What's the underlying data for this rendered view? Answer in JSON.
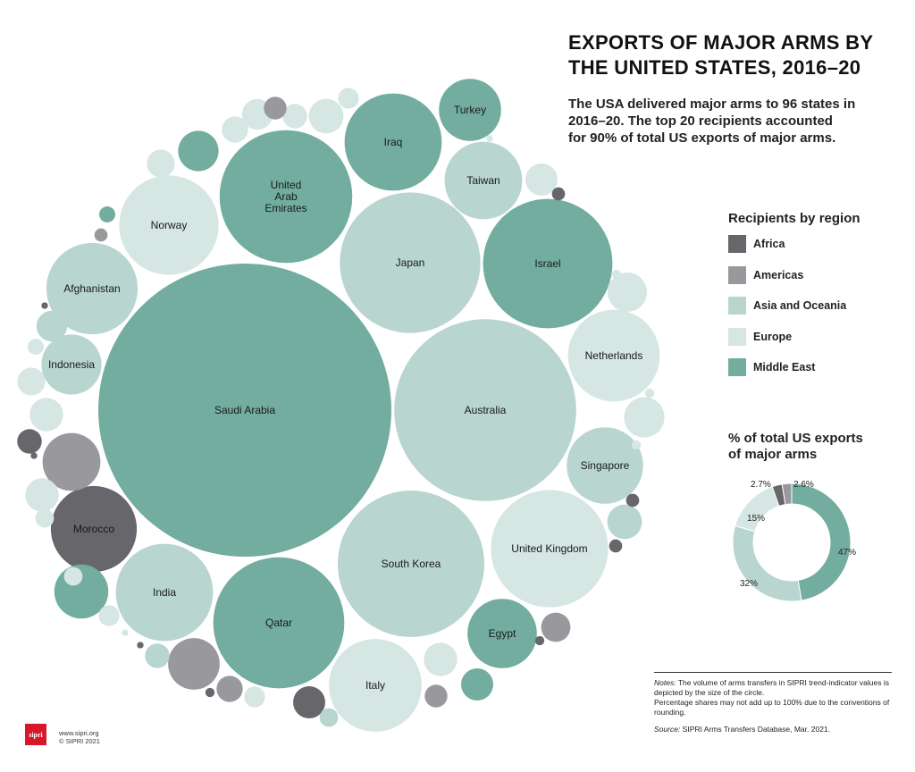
{
  "title_lines": [
    "EXPORTS OF MAJOR ARMS BY",
    "THE UNITED STATES, 2016–20"
  ],
  "subtitle_lines": [
    "The USA delivered major arms to 96 states in",
    "2016–20. The top 20 recipients accounted",
    "for 90% of total US exports of major arms."
  ],
  "legend": {
    "title": "Recipients by region",
    "items": [
      {
        "label": "Africa",
        "color": "#66666b"
      },
      {
        "label": "Americas",
        "color": "#99999d"
      },
      {
        "label": "Asia and Oceania",
        "color": "#b8d5cf"
      },
      {
        "label": "Europe",
        "color": "#d5e6e3"
      },
      {
        "label": "Middle East",
        "color": "#73ad9f"
      }
    ]
  },
  "share_title_lines": [
    "% of total US exports",
    "of major arms"
  ],
  "notes": {
    "notes_label": "Notes:",
    "notes_text": "The volume of arms transfers in SIPRI trend-indicator values is depicted by the size of the circle.",
    "notes_text_2": "Percentage shares may not add up to 100% due to the conventions of rounding.",
    "source_label": "Source:",
    "source_text": "SIPRI Arms Transfers Database, Mar. 2021."
  },
  "footer": {
    "logo_text": "sipri",
    "website": "www.sipri.org",
    "copyright": "© SIPRI 2021"
  },
  "chart_data": [
    {
      "type": "bubble",
      "value_note": "relative volume (SIPRI trend-indicator value) shown by circle area; values are relative estimates",
      "regions": [
        "Africa",
        "Americas",
        "Asia and Oceania",
        "Europe",
        "Middle East"
      ],
      "points": [
        {
          "name": "Saudi Arabia",
          "region": "Middle East",
          "value": 1000
        },
        {
          "name": "Australia",
          "region": "Asia and Oceania",
          "value": 385
        },
        {
          "name": "South Korea",
          "region": "Asia and Oceania",
          "value": 250
        },
        {
          "name": "Japan",
          "region": "Asia and Oceania",
          "value": 230
        },
        {
          "name": "Israel",
          "region": "Middle East",
          "value": 195
        },
        {
          "name": "United Arab Emirates",
          "region": "Middle East",
          "value": 205
        },
        {
          "name": "Qatar",
          "region": "Middle East",
          "value": 200
        },
        {
          "name": "United Kingdom",
          "region": "Europe",
          "value": 160
        },
        {
          "name": "Italy",
          "region": "Europe",
          "value": 100
        },
        {
          "name": "Norway",
          "region": "Europe",
          "value": 115
        },
        {
          "name": "India",
          "region": "Asia and Oceania",
          "value": 110
        },
        {
          "name": "Iraq",
          "region": "Middle East",
          "value": 110
        },
        {
          "name": "Afghanistan",
          "region": "Asia and Oceania",
          "value": 97
        },
        {
          "name": "Morocco",
          "region": "Africa",
          "value": 86
        },
        {
          "name": "Netherlands",
          "region": "Europe",
          "value": 98
        },
        {
          "name": "Taiwan",
          "region": "Asia and Oceania",
          "value": 70
        },
        {
          "name": "Singapore",
          "region": "Asia and Oceania",
          "value": 68
        },
        {
          "name": "Egypt",
          "region": "Middle East",
          "value": 56
        },
        {
          "name": "Indonesia",
          "region": "Asia and Oceania",
          "value": 42
        },
        {
          "name": "Turkey",
          "region": "Middle East",
          "value": 45
        },
        {
          "name": "",
          "region": "Americas",
          "value": 39
        },
        {
          "name": "",
          "region": "Middle East",
          "value": 34
        },
        {
          "name": "",
          "region": "Americas",
          "value": 31
        },
        {
          "name": "",
          "region": "Europe",
          "value": 19
        },
        {
          "name": "",
          "region": "Europe",
          "value": 18
        },
        {
          "name": "",
          "region": "Middle East",
          "value": 19
        },
        {
          "name": "",
          "region": "Asia and Oceania",
          "value": 14
        },
        {
          "name": "",
          "region": "Europe",
          "value": 13
        },
        {
          "name": "",
          "region": "Europe",
          "value": 14
        },
        {
          "name": "",
          "region": "Europe",
          "value": 13
        },
        {
          "name": "",
          "region": "Europe",
          "value": 13
        },
        {
          "name": "",
          "region": "Africa",
          "value": 12
        },
        {
          "name": "",
          "region": "Europe",
          "value": 12
        },
        {
          "name": "",
          "region": "Asia and Oceania",
          "value": 11
        },
        {
          "name": "",
          "region": "Americas",
          "value": 10
        },
        {
          "name": "",
          "region": "Middle East",
          "value": 12
        },
        {
          "name": "",
          "region": "Europe",
          "value": 11
        },
        {
          "name": "",
          "region": "Americas",
          "value": 8
        },
        {
          "name": "",
          "region": "Europe",
          "value": 9
        },
        {
          "name": "",
          "region": "Europe",
          "value": 9
        },
        {
          "name": "",
          "region": "Europe",
          "value": 8
        },
        {
          "name": "",
          "region": "Europe",
          "value": 7
        },
        {
          "name": "",
          "region": "Africa",
          "value": 7
        },
        {
          "name": "",
          "region": "Asia and Oceania",
          "value": 7
        },
        {
          "name": "",
          "region": "Americas",
          "value": 6
        },
        {
          "name": "",
          "region": "Americas",
          "value": 6
        },
        {
          "name": "",
          "region": "Europe",
          "value": 5
        },
        {
          "name": "",
          "region": "Europe",
          "value": 5
        },
        {
          "name": "",
          "region": "Europe",
          "value": 4
        },
        {
          "name": "",
          "region": "Europe",
          "value": 5
        },
        {
          "name": "",
          "region": "Europe",
          "value": 4
        },
        {
          "name": "",
          "region": "Asia and Oceania",
          "value": 4
        },
        {
          "name": "",
          "region": "Europe",
          "value": 3
        },
        {
          "name": "",
          "region": "Middle East",
          "value": 3
        },
        {
          "name": "",
          "region": "Americas",
          "value": 2
        },
        {
          "name": "",
          "region": "Africa",
          "value": 2
        },
        {
          "name": "",
          "region": "Africa",
          "value": 2
        },
        {
          "name": "",
          "region": "Africa",
          "value": 2
        },
        {
          "name": "",
          "region": "Africa",
          "value": 1
        },
        {
          "name": "",
          "region": "Africa",
          "value": 1
        },
        {
          "name": "",
          "region": "Europe",
          "value": 1
        },
        {
          "name": "",
          "region": "Europe",
          "value": 1
        },
        {
          "name": "",
          "region": "Europe",
          "value": 1
        },
        {
          "name": "",
          "region": "Africa",
          "value": 0.5
        },
        {
          "name": "",
          "region": "Europe",
          "value": 0.5
        },
        {
          "name": "",
          "region": "Africa",
          "value": 0.5
        },
        {
          "name": "",
          "region": "Africa",
          "value": 0.5
        },
        {
          "name": "",
          "region": "Europe",
          "value": 0.5
        }
      ]
    },
    {
      "type": "pie",
      "variant": "donut",
      "slices": [
        {
          "region": "Middle East",
          "value": 47,
          "label": "47%"
        },
        {
          "region": "Asia and Oceania",
          "value": 32,
          "label": "32%"
        },
        {
          "region": "Europe",
          "value": 15,
          "label": "15%"
        },
        {
          "region": "Africa",
          "value": 2.7,
          "label": "2.7%"
        },
        {
          "region": "Americas",
          "value": 2.6,
          "label": "2.6%"
        }
      ]
    }
  ]
}
